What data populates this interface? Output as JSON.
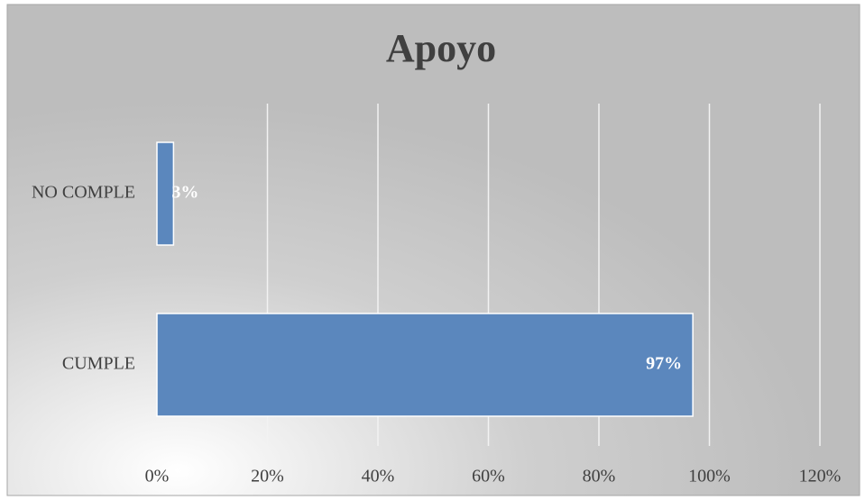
{
  "chart_data": {
    "type": "hbar",
    "title": "Apoyo",
    "categories": [
      "NO COMPLE",
      "CUMPLE"
    ],
    "values": [
      3,
      97
    ],
    "value_labels": [
      "3%",
      "97%"
    ],
    "color": "#5b87bd",
    "xlim": [
      0,
      120
    ],
    "xticks": [
      {
        "value": 0,
        "label": "0%"
      },
      {
        "value": 20,
        "label": "20%"
      },
      {
        "value": 40,
        "label": "40%"
      },
      {
        "value": 60,
        "label": "60%"
      },
      {
        "value": 80,
        "label": "80%"
      },
      {
        "value": 100,
        "label": "100%"
      },
      {
        "value": 120,
        "label": "120%"
      }
    ],
    "grid": true
  }
}
